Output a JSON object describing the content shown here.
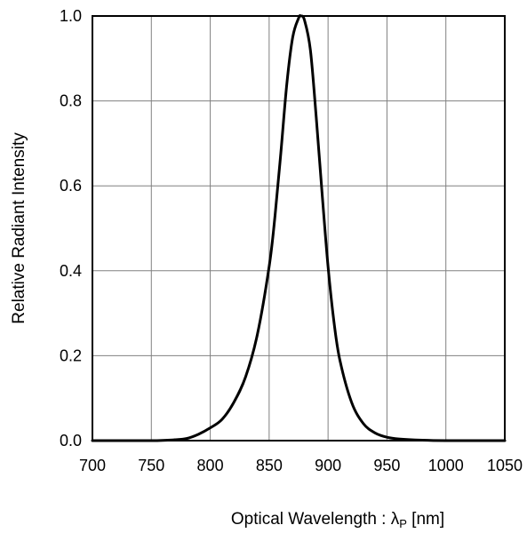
{
  "chart_data": {
    "type": "line",
    "xlabel": "Optical Wavelength : λP [nm]",
    "ylabel": "Relative Radiant Intensity",
    "xlim": [
      700,
      1050
    ],
    "ylim": [
      0,
      1.0
    ],
    "x_ticks": [
      700,
      750,
      800,
      850,
      900,
      950,
      1000,
      1050
    ],
    "y_ticks": [
      0.0,
      0.2,
      0.4,
      0.6,
      0.8,
      1.0
    ],
    "x_tick_labels": [
      "700",
      "750",
      "800",
      "850",
      "900",
      "950",
      "1000",
      "1050"
    ],
    "y_tick_labels": [
      "0.0",
      "0.2",
      "0.4",
      "0.6",
      "0.8",
      "1.0"
    ],
    "grid": true,
    "series": [
      {
        "x": [
          700,
          750,
          770,
          780,
          790,
          800,
          810,
          820,
          830,
          840,
          850,
          855,
          860,
          865,
          870,
          875,
          877,
          880,
          885,
          890,
          895,
          900,
          905,
          910,
          920,
          930,
          940,
          950,
          960,
          980,
          1000,
          1050
        ],
        "y": [
          0.0,
          0.0,
          0.002,
          0.005,
          0.015,
          0.03,
          0.05,
          0.09,
          0.15,
          0.25,
          0.41,
          0.53,
          0.68,
          0.84,
          0.95,
          0.995,
          1.0,
          0.99,
          0.92,
          0.76,
          0.58,
          0.41,
          0.28,
          0.19,
          0.09,
          0.04,
          0.018,
          0.008,
          0.004,
          0.001,
          0.0,
          0.0
        ]
      }
    ]
  }
}
